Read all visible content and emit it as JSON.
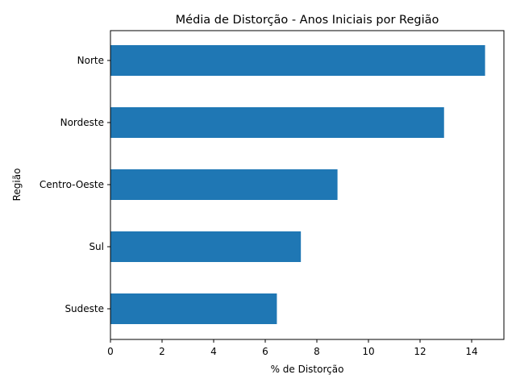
{
  "chart_data": {
    "type": "bar",
    "orientation": "horizontal",
    "title": "Média de Distorção - Anos Iniciais por Região",
    "xlabel": "% de Distorção",
    "ylabel": "Região",
    "categories": [
      "Sudeste",
      "Sul",
      "Centro-Oeste",
      "Nordeste",
      "Norte"
    ],
    "values": [
      6.45,
      7.38,
      8.8,
      12.93,
      14.52
    ],
    "xlim": [
      0,
      15.25
    ],
    "xticks": [
      0,
      2,
      4,
      6,
      8,
      10,
      12,
      14
    ],
    "grid": false,
    "legend": "none",
    "bar_color": "#1f77b4"
  }
}
